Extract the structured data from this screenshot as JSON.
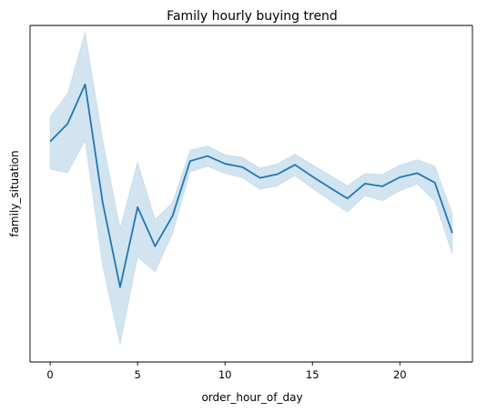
{
  "chart_data": {
    "type": "line",
    "title": "Family hourly buying trend",
    "xlabel": "order_hour_of_day",
    "ylabel": "family_situation",
    "xlim": [
      -1.15,
      24.15
    ],
    "ylim": [
      0,
      100
    ],
    "x_ticks": [
      0,
      5,
      10,
      15,
      20
    ],
    "y_ticks_shown": false,
    "grid": false,
    "legend": "none",
    "colors": {
      "line": "#1f77b4",
      "band": "#1f77b4",
      "axes": "#000000"
    },
    "series": [
      {
        "x": [
          0,
          1,
          2,
          3,
          4,
          5,
          6,
          7,
          8,
          9,
          10,
          11,
          12,
          13,
          14,
          15,
          16,
          17,
          18,
          19,
          20,
          21,
          22,
          23
        ],
        "values": [
          65.5,
          70.8,
          82.5,
          47.5,
          22.2,
          46.0,
          34.4,
          43.4,
          59.7,
          61.2,
          58.9,
          57.9,
          54.7,
          55.8,
          58.6,
          55.1,
          51.8,
          48.6,
          53.0,
          52.2,
          54.9,
          56.1,
          53.3,
          38.3
        ],
        "ci_lower": [
          57.3,
          56.2,
          65.8,
          28.5,
          5.2,
          31.2,
          26.8,
          38.1,
          56.5,
          58.1,
          56.0,
          54.8,
          51.3,
          52.3,
          55.4,
          51.6,
          48.0,
          44.5,
          49.4,
          47.9,
          50.9,
          52.8,
          47.8,
          32.0
        ],
        "ci_upper": [
          72.8,
          79.8,
          98.0,
          66.1,
          39.7,
          59.4,
          42.3,
          47.4,
          62.9,
          64.2,
          61.6,
          60.8,
          57.6,
          58.9,
          61.8,
          58.6,
          55.5,
          52.4,
          56.0,
          55.7,
          58.5,
          60.1,
          58.2,
          44.1
        ]
      }
    ]
  }
}
